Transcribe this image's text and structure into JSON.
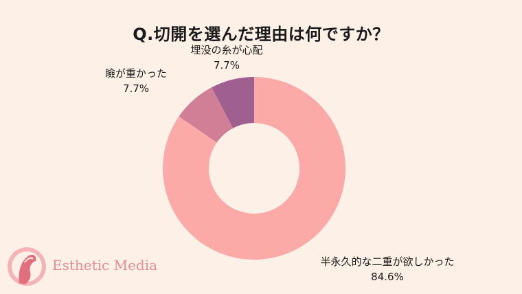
{
  "chart_data": {
    "type": "pie",
    "title": "Q.切開を選んだ理由は何ですか？",
    "slices": [
      {
        "label": "半永久的な二重が欲しかった",
        "value": 84.6,
        "display": "84.6%",
        "color": "#fbaaa8"
      },
      {
        "label": "瞼が重かった",
        "value": 7.7,
        "display": "7.7%",
        "color": "#d17f96"
      },
      {
        "label": "埋没の糸が心配",
        "value": 7.7,
        "display": "7.7%",
        "color": "#a0608f"
      }
    ]
  },
  "logo": {
    "text": "Esthetic Media"
  }
}
